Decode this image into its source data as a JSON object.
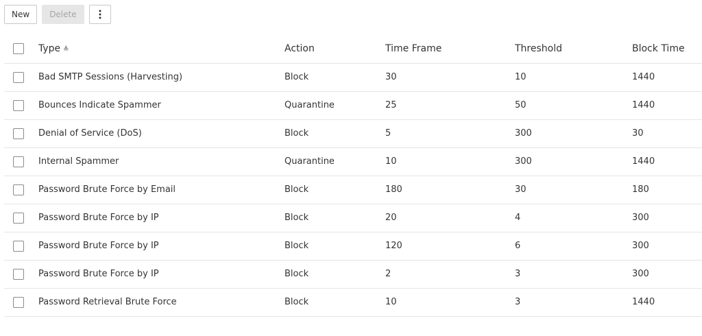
{
  "toolbar": {
    "new_label": "New",
    "delete_label": "Delete",
    "more_icon": "more-vertical-icon"
  },
  "table": {
    "headers": [
      "Type",
      "Action",
      "Time Frame",
      "Threshold",
      "Block Time"
    ],
    "sort": {
      "column": "Type",
      "direction": "ascending",
      "icon": "▲"
    },
    "rows": [
      [
        "Bad SMTP Sessions (Harvesting)",
        "Block",
        "30",
        "10",
        "1440"
      ],
      [
        "Bounces Indicate Spammer",
        "Quarantine",
        "25",
        "50",
        "1440"
      ],
      [
        "Denial of Service (DoS)",
        "Block",
        "5",
        "300",
        "30"
      ],
      [
        "Internal Spammer",
        "Quarantine",
        "10",
        "300",
        "1440"
      ],
      [
        "Password Brute Force by Email",
        "Block",
        "180",
        "30",
        "180"
      ],
      [
        "Password Brute Force by IP",
        "Block",
        "20",
        "4",
        "300"
      ],
      [
        "Password Brute Force by IP",
        "Block",
        "120",
        "6",
        "300"
      ],
      [
        "Password Brute Force by IP",
        "Block",
        "2",
        "3",
        "300"
      ],
      [
        "Password Retrieval Brute Force",
        "Block",
        "10",
        "3",
        "1440"
      ]
    ]
  }
}
